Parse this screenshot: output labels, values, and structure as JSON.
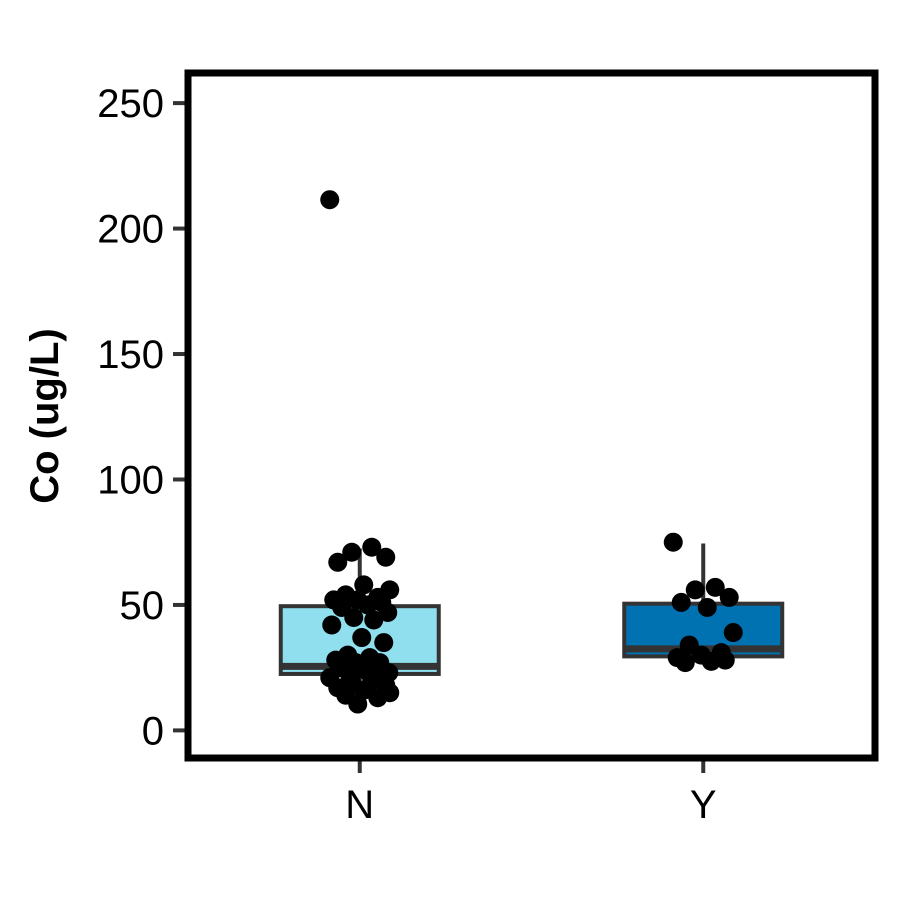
{
  "chart_data": {
    "type": "box",
    "title": "",
    "xlabel": "",
    "ylabel": "Co (ug/L)",
    "ylim": [
      -11,
      262
    ],
    "yticks": [
      0,
      50,
      100,
      150,
      200,
      250
    ],
    "categories": [
      "N",
      "Y"
    ],
    "grid": false,
    "legend": "none",
    "boxes": [
      {
        "category": "N",
        "color": "#8fdfee",
        "q1": 22.5,
        "median": 25.5,
        "q3": 49.5,
        "whisker_low": 10.5,
        "whisker_high": 72.5,
        "points": [
          211.5,
          73,
          71,
          69,
          67,
          58,
          56,
          54,
          53,
          52,
          52,
          51,
          50,
          49,
          47,
          45,
          44,
          42,
          37,
          35,
          30,
          29,
          28,
          27,
          27,
          26,
          25,
          24,
          23,
          22,
          21,
          20,
          19,
          18,
          17,
          16,
          15,
          14,
          13,
          10.5
        ]
      },
      {
        "category": "Y",
        "color": "#0072b2",
        "q1": 29.5,
        "median": 32.5,
        "q3": 50.5,
        "whisker_low": 27,
        "whisker_high": 74.5,
        "points": [
          75,
          57,
          56,
          53,
          51,
          49,
          39,
          34,
          31,
          30,
          29,
          28,
          27.5,
          27
        ]
      }
    ]
  }
}
